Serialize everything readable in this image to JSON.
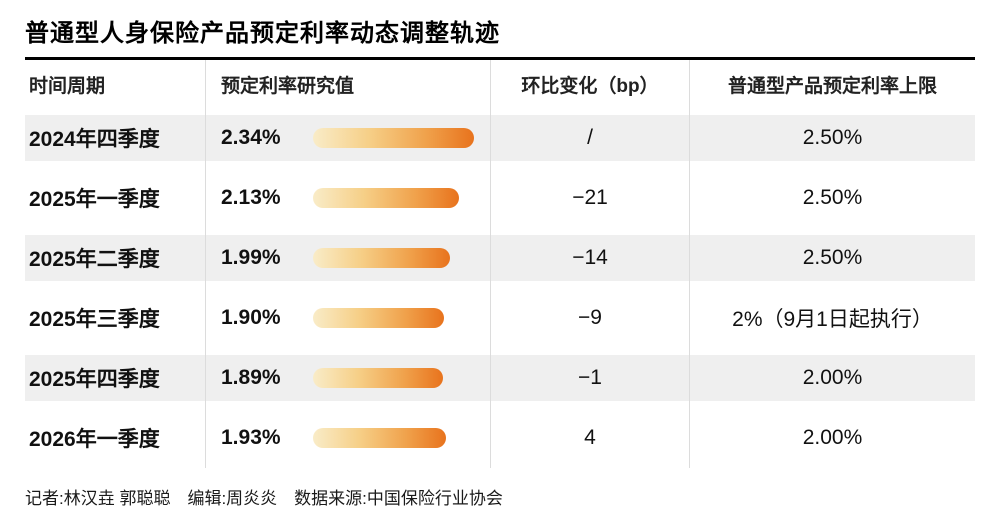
{
  "title": "普通型人身保险产品预定利率动态调整轨迹",
  "columns": {
    "period": "时间周期",
    "rate": "预定利率研究值",
    "change": "环比变化（bp）",
    "ceiling": "普通型产品预定利率上限"
  },
  "rows": [
    {
      "period": "2024年四季度",
      "rate": "2.34%",
      "rate_value": 2.34,
      "change": "/",
      "ceiling": "2.50%"
    },
    {
      "period": "2025年一季度",
      "rate": "2.13%",
      "rate_value": 2.13,
      "change": "−21",
      "ceiling": "2.50%"
    },
    {
      "period": "2025年二季度",
      "rate": "1.99%",
      "rate_value": 1.99,
      "change": "−14",
      "ceiling": "2.50%"
    },
    {
      "period": "2025年三季度",
      "rate": "1.90%",
      "rate_value": 1.9,
      "change": "−9",
      "ceiling": "2%（9月1日起执行）"
    },
    {
      "period": "2025年四季度",
      "rate": "1.89%",
      "rate_value": 1.89,
      "change": "−1",
      "ceiling": "2.00%"
    },
    {
      "period": "2026年一季度",
      "rate": "1.93%",
      "rate_value": 1.93,
      "change": "4",
      "ceiling": "2.00%"
    }
  ],
  "footer": "记者:林汉垚 郭聪聪　编辑:周炎炎　数据来源:中国保险行业协会",
  "colors": {
    "bar_gradient_start": "#f9ecc8",
    "bar_gradient_end": "#e8731d",
    "row_stripe": "#efefef",
    "divider": "#dcdcdc",
    "title_rule": "#000000"
  },
  "chart_data": {
    "type": "bar",
    "orientation": "horizontal",
    "title": "普通型人身保险产品预定利率动态调整轨迹",
    "categories": [
      "2024年四季度",
      "2025年一季度",
      "2025年二季度",
      "2025年三季度",
      "2025年四季度",
      "2026年一季度"
    ],
    "series": [
      {
        "name": "预定利率研究值(%)",
        "values": [
          2.34,
          2.13,
          1.99,
          1.9,
          1.89,
          1.93
        ]
      },
      {
        "name": "环比变化(bp)",
        "values": [
          null,
          -21,
          -14,
          -9,
          -1,
          4
        ]
      },
      {
        "name": "普通型产品预定利率上限",
        "values": [
          "2.50%",
          "2.50%",
          "2.50%",
          "2%（9月1日起执行）",
          "2.00%",
          "2.00%"
        ]
      }
    ],
    "xlim": [
      0,
      2.4
    ],
    "xlabel": "",
    "ylabel": "",
    "grid": false,
    "legend_position": "none"
  }
}
